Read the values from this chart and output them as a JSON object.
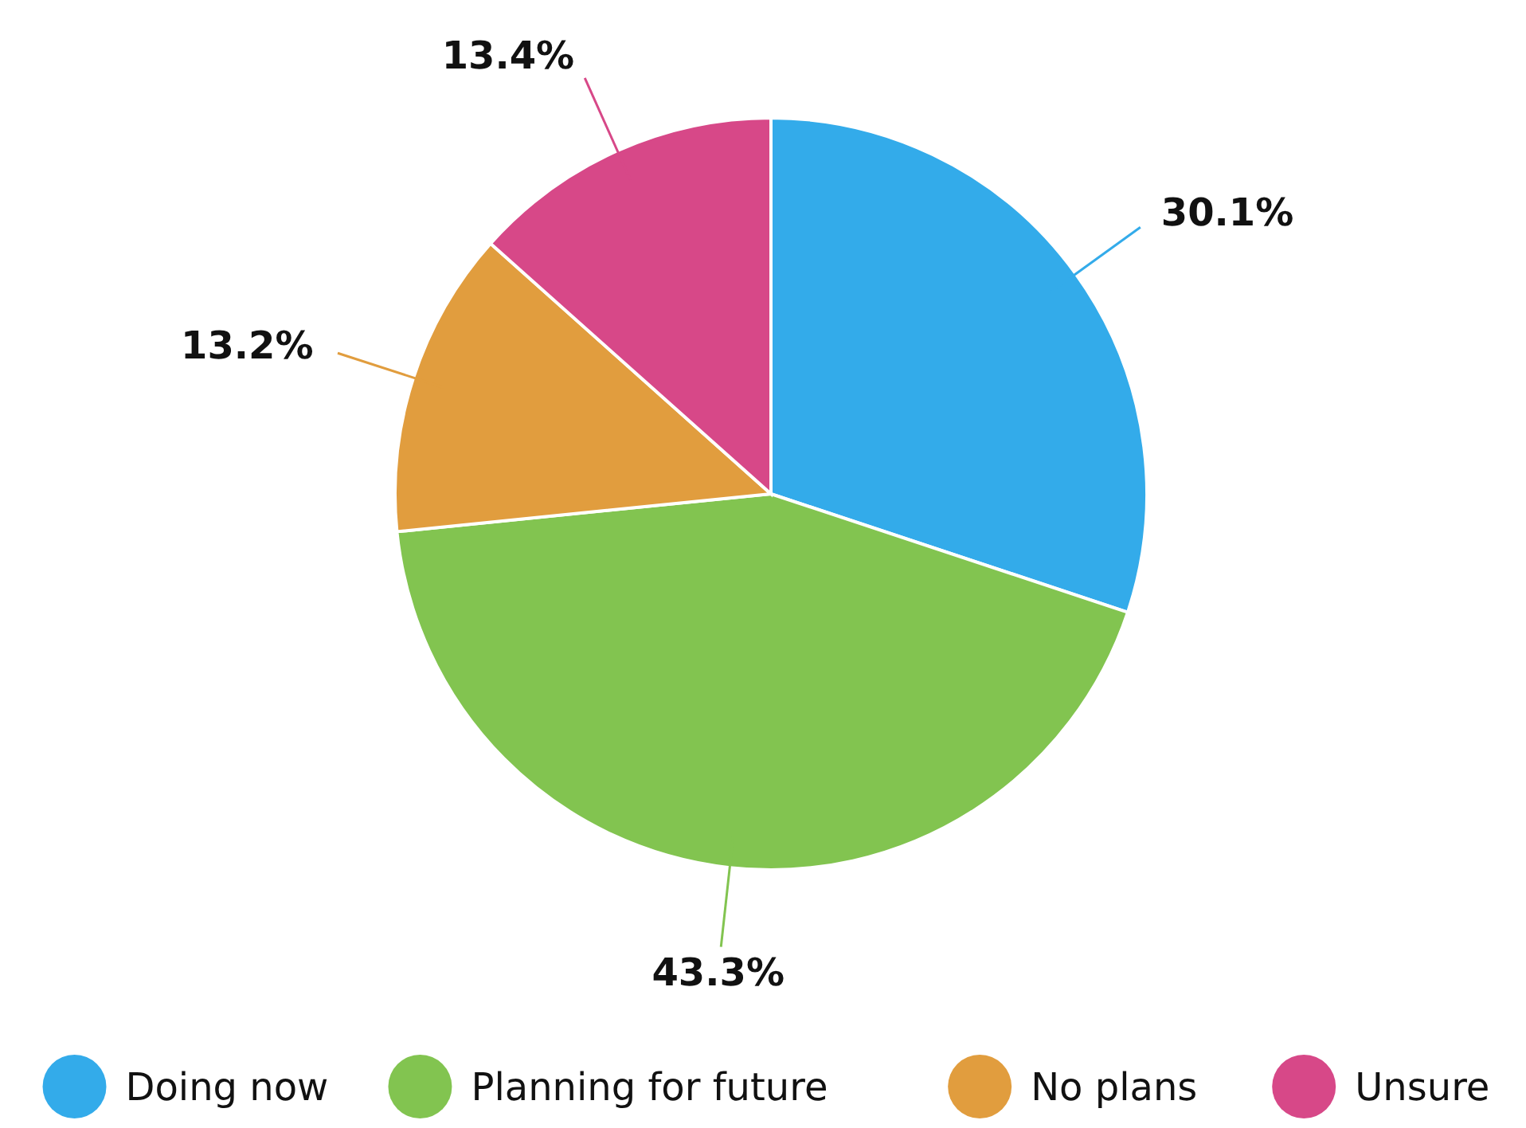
{
  "chart_data": {
    "type": "pie",
    "categories": [
      "Doing now",
      "Planning for future",
      "No plans",
      "Unsure"
    ],
    "values": [
      30.1,
      43.3,
      13.2,
      13.4
    ],
    "colors": [
      "#33abea",
      "#82c450",
      "#e19d3e",
      "#d74888"
    ],
    "value_labels": [
      "30.1%",
      "43.3%",
      "13.2%",
      "13.4%"
    ],
    "legend": "bottom"
  }
}
